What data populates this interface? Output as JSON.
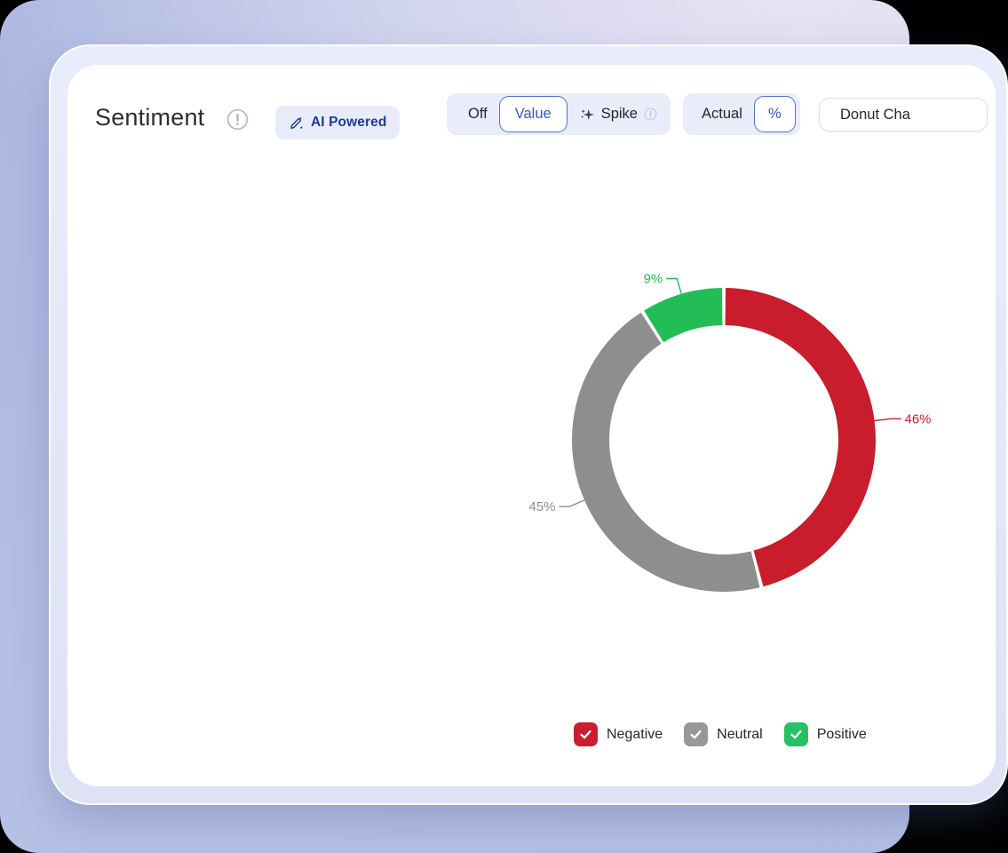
{
  "header": {
    "title": "Sentiment",
    "title_info_icon": "info-exclamation-icon",
    "badge": {
      "label": "AI Powered",
      "icon": "pen-sparkle-icon"
    }
  },
  "controls": {
    "labels_toggle": {
      "options": [
        {
          "label": "Off",
          "selected": false
        },
        {
          "label": "Value",
          "selected": true
        },
        {
          "label": "Spike",
          "selected": false,
          "leading_icon": "sparkle-icon",
          "trailing_icon": "info-exclamation-icon"
        }
      ]
    },
    "scale_toggle": {
      "options": [
        {
          "label": "Actual",
          "selected": false
        },
        {
          "label": "%",
          "selected": true
        }
      ]
    },
    "chart_type_dropdown": {
      "visible_label": "Donut Cha"
    }
  },
  "chart_data": {
    "type": "pie",
    "subtype": "donut",
    "title": "Sentiment",
    "unit": "%",
    "direction": "clockwise",
    "start_angle_deg": 0,
    "legend_position": "bottom",
    "slices": [
      {
        "label": "Negative",
        "value": 46,
        "color": "#c91c2c",
        "value_label": "46%",
        "value_label_truncated_at_edge": true
      },
      {
        "label": "Neutral",
        "value": 45,
        "color": "#8e8e8e",
        "value_label": "45%"
      },
      {
        "label": "Positive",
        "value": 9,
        "color": "#23bd58",
        "value_label": "9%"
      }
    ]
  },
  "legend": {
    "items": [
      {
        "label": "Negative",
        "color": "#cb1d2d",
        "checked": true
      },
      {
        "label": "Neutral",
        "color": "#98989b",
        "checked": true
      },
      {
        "label": "Positive",
        "color": "#25c261",
        "checked": true
      }
    ]
  }
}
